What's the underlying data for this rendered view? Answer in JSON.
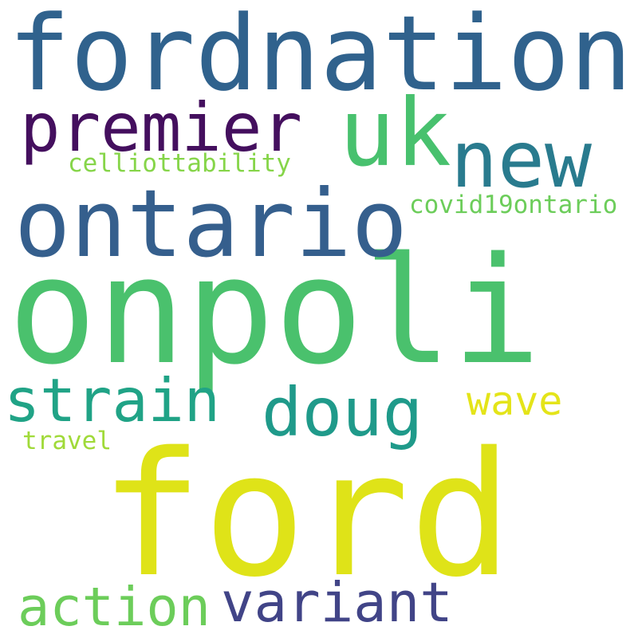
{
  "background": "#ffffff",
  "words": [
    {
      "text": "onpoli",
      "color": "#4ac16d"
    },
    {
      "text": "ford",
      "color": "#dfe318"
    },
    {
      "text": "fordnation",
      "color": "#30628d"
    },
    {
      "text": "ontario",
      "color": "#355f8d"
    },
    {
      "text": "uk",
      "color": "#48c16e"
    },
    {
      "text": "new",
      "color": "#297b8e"
    },
    {
      "text": "premier",
      "color": "#440f5e"
    },
    {
      "text": "doug",
      "color": "#1f9a8a"
    },
    {
      "text": "strain",
      "color": "#20a386"
    },
    {
      "text": "variant",
      "color": "#414487"
    },
    {
      "text": "action",
      "color": "#6ccd5a"
    },
    {
      "text": "wave",
      "color": "#e4e419"
    },
    {
      "text": "celliottability",
      "color": "#86d549"
    },
    {
      "text": "covid19ontario",
      "color": "#6ccd5a"
    },
    {
      "text": "travel",
      "color": "#a0da39"
    }
  ]
}
